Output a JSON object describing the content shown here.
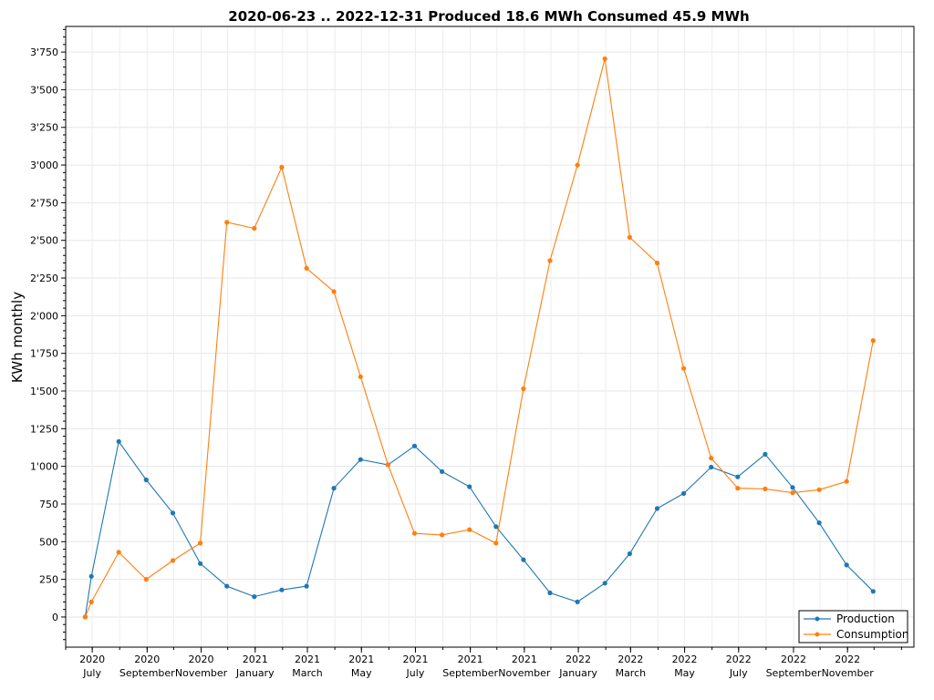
{
  "chart_data": {
    "type": "line",
    "title": "2020-06-23 .. 2022-12-31 Produced 18.6 MWh Consumed 45.9 MWh",
    "xlabel": "",
    "ylabel": "KWh monthly",
    "ylim": [
      -200,
      3920
    ],
    "grid": true,
    "legend_position": "bottom-right",
    "x": [
      "2020-06-23",
      "2020-06-30",
      "2020-07-31",
      "2020-08-31",
      "2020-09-30",
      "2020-10-31",
      "2020-11-30",
      "2020-12-31",
      "2021-01-31",
      "2021-02-28",
      "2021-03-31",
      "2021-04-30",
      "2021-05-31",
      "2021-06-30",
      "2021-07-31",
      "2021-08-31",
      "2021-09-30",
      "2021-10-31",
      "2021-11-30",
      "2021-12-31",
      "2022-01-31",
      "2022-02-28",
      "2022-03-31",
      "2022-04-30",
      "2022-05-31",
      "2022-06-30",
      "2022-07-31",
      "2022-08-31",
      "2022-09-30",
      "2022-10-31",
      "2022-11-30",
      "2022-12-31"
    ],
    "x_tick_labels": [
      {
        "date": "2020-07-01",
        "year": "2020",
        "month": "July"
      },
      {
        "date": "2020-09-01",
        "year": "2020",
        "month": "September"
      },
      {
        "date": "2020-11-01",
        "year": "2020",
        "month": "November"
      },
      {
        "date": "2021-01-01",
        "year": "2021",
        "month": "January"
      },
      {
        "date": "2021-03-01",
        "year": "2021",
        "month": "March"
      },
      {
        "date": "2021-05-01",
        "year": "2021",
        "month": "May"
      },
      {
        "date": "2021-07-01",
        "year": "2021",
        "month": "July"
      },
      {
        "date": "2021-09-01",
        "year": "2021",
        "month": "September"
      },
      {
        "date": "2021-11-01",
        "year": "2021",
        "month": "November"
      },
      {
        "date": "2022-01-01",
        "year": "2022",
        "month": "January"
      },
      {
        "date": "2022-03-01",
        "year": "2022",
        "month": "March"
      },
      {
        "date": "2022-05-01",
        "year": "2022",
        "month": "May"
      },
      {
        "date": "2022-07-01",
        "year": "2022",
        "month": "July"
      },
      {
        "date": "2022-09-01",
        "year": "2022",
        "month": "September"
      },
      {
        "date": "2022-11-01",
        "year": "2022",
        "month": "November"
      }
    ],
    "y_tick_labels": [
      "0",
      "250",
      "500",
      "750",
      "1'000",
      "1'250",
      "1'500",
      "1'750",
      "2'000",
      "2'250",
      "2'500",
      "2'750",
      "3'000",
      "3'250",
      "3'500",
      "3'750"
    ],
    "y_ticks": [
      0,
      250,
      500,
      750,
      1000,
      1250,
      1500,
      1750,
      2000,
      2250,
      2500,
      2750,
      3000,
      3250,
      3500,
      3750
    ],
    "series": [
      {
        "name": "Production",
        "color": "#1f77b4",
        "values": [
          0,
          270,
          1165,
          910,
          690,
          355,
          205,
          135,
          180,
          205,
          855,
          1045,
          1010,
          1135,
          965,
          865,
          600,
          380,
          160,
          100,
          225,
          420,
          720,
          820,
          995,
          930,
          1080,
          860,
          625,
          345,
          170,
          null
        ]
      },
      {
        "name": "Consumption",
        "color": "#ff7f0e",
        "values": [
          0,
          100,
          430,
          250,
          375,
          490,
          2620,
          2580,
          2985,
          2315,
          2160,
          1595,
          1010,
          555,
          545,
          580,
          490,
          1515,
          2365,
          3000,
          3705,
          2520,
          2350,
          1650,
          1055,
          855,
          850,
          825,
          845,
          900,
          1835,
          null
        ]
      }
    ]
  }
}
